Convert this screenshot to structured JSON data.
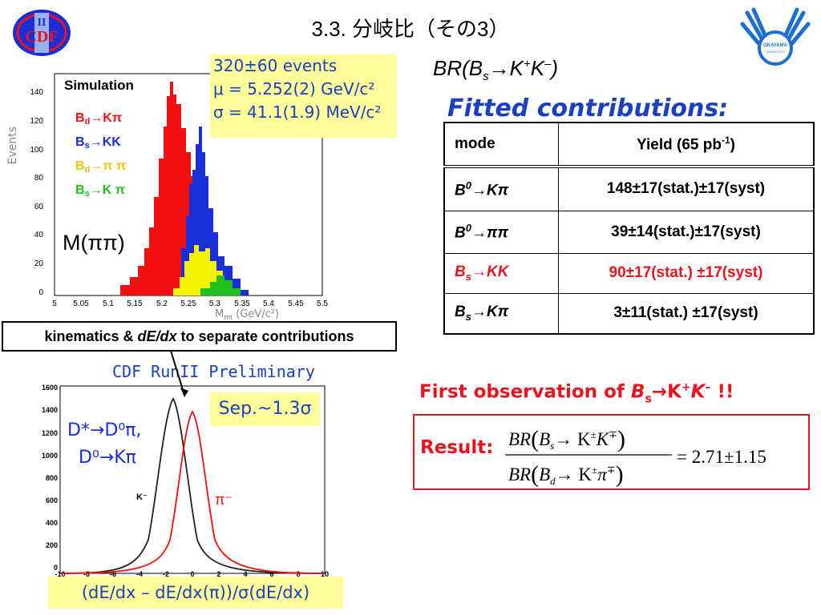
{
  "slide": {
    "title": "3.3. 分岐比（その3）",
    "br_title_main": "BR(B",
    "br_title_sub": "s",
    "br_title_arrow": "→K",
    "br_title_sup1": "+",
    "br_title_k2": "K",
    "br_title_sup2": "–",
    "br_title_close": ")",
    "fitted_title": "Fitted contributions:"
  },
  "table": {
    "header": {
      "mode": "mode",
      "yield_label": "Yield (65 pb",
      "yield_sup": "-1",
      "yield_close": ")"
    },
    "rows": [
      {
        "mode_main": "B",
        "mode_sup": "0",
        "mode_rest": "→Kπ",
        "value": "148±17(stat.)±17(syst)"
      },
      {
        "mode_main": "B",
        "mode_sup": "0",
        "mode_rest": "→ππ",
        "value": "39±14(stat.)±17(syst)"
      },
      {
        "mode_main": "B",
        "mode_sub": "s",
        "mode_rest": "→KK",
        "value": "90±17(stat.) ±17(syst)"
      },
      {
        "mode_main": "B",
        "mode_sub": "s",
        "mode_rest": "→Kπ",
        "value": "3±11(stat.) ±17(syst)"
      }
    ]
  },
  "upper_plot": {
    "events_line1": "320±60 events",
    "events_line2": "μ = 5.252(2) GeV/c²",
    "events_line3": "σ = 41.1(1.9) MeV/c²",
    "simulation": "Simulation",
    "legend": [
      {
        "b": "B",
        "sub": "d",
        "rest": "→Kπ",
        "color": "#f01010"
      },
      {
        "b": "B",
        "sub": "s",
        "rest": "→KK",
        "color": "#1a2ed8"
      },
      {
        "b": "B",
        "sub": "d",
        "rest": "→π π",
        "color": "#f2c400"
      },
      {
        "b": "B",
        "sub": "s",
        "rest": "→K π",
        "color": "#20c020"
      }
    ],
    "mass_label": "M(ππ)",
    "ylabel": "Events",
    "xlabel": "M",
    "xlabel_sub": "ππ",
    "xlabel_unit": " (GeV/c²)",
    "yticks": [
      "140",
      "120",
      "100",
      "80",
      "60",
      "40",
      "20",
      "0"
    ],
    "xticks": [
      "5",
      "5.05",
      "5.1",
      "5.15",
      "5.2",
      "5.25",
      "5.3",
      "5.35",
      "5.4",
      "5.45",
      "5.5"
    ]
  },
  "kinematics_box": {
    "pre": "kinematics & ",
    "italic": "dE/dx",
    "post": " to separate contributions"
  },
  "lower_plot": {
    "prelim": "CDF RunII Preliminary",
    "sep": "Sep.~1.3σ",
    "dstar_line1": "D*→D⁰π,",
    "dstar_line2": "D⁰→Kπ",
    "k_label": "K⁻",
    "pi_label": "π⁻",
    "yticks": [
      "1600",
      "1400",
      "1200",
      "1000",
      "800",
      "600",
      "400",
      "200",
      "0"
    ],
    "xticks": [
      "-10",
      "-8",
      "-6",
      "-4",
      "-2",
      "0",
      "2",
      "4",
      "6",
      "8",
      "10"
    ],
    "xaxis_box": "(dE/dx – dE/dx(π))/σ(dE/dx)"
  },
  "result": {
    "first_obs_pre": "First observation of ",
    "first_obs_b": "B",
    "first_obs_sub": "s",
    "first_obs_arrow": "→K",
    "first_obs_sup1": "+",
    "first_obs_k": "K",
    "first_obs_sup2": "–",
    "first_obs_bang": " !!",
    "label": "Result:",
    "num_br": "BR",
    "num_b": "B",
    "num_sub": "s",
    "num_rest": "→ K",
    "num_pm": "±",
    "num_k2": "K",
    "num_mp": "∓",
    "den_br": "BR",
    "den_b": "B",
    "den_sub": "d",
    "den_rest": "→ K",
    "den_pm": "±",
    "den_pi": "π",
    "den_mp": "∓",
    "value": "= 2.71±1.15"
  },
  "logos": {
    "cdf_text": "CDF",
    "cdf_numeral": "II",
    "okayama_line1": "OKAYAMA",
    "okayama_line2": "UNIVERSITY"
  },
  "colors": {
    "blue_text": "#1a3fbf",
    "red_text": "#e8141e",
    "yellow_box": "#fefe9a"
  }
}
